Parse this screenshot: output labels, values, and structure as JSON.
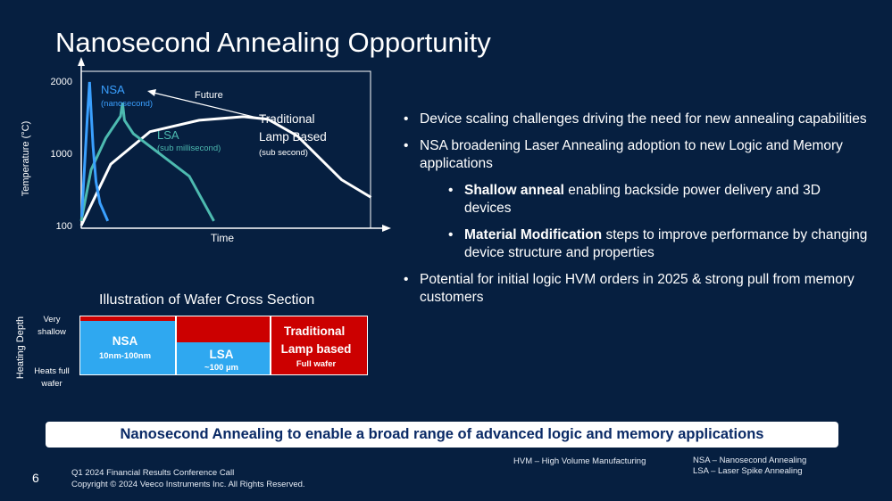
{
  "slide": {
    "title": "Nanosecond Annealing Opportunity",
    "page_number": "6",
    "footer_lines": [
      "Q1 2024 Financial Results Conference Call",
      "Copyright © 2024 Veeco Instruments Inc. All Rights Reserved."
    ],
    "hvm_note": "HVM – High Volume Manufacturing",
    "abbreviations": [
      "NSA – Nanosecond Annealing",
      "LSA – Laser Spike Annealing"
    ],
    "banner": "Nanosecond Annealing to enable a broad range of advanced logic and memory applications"
  },
  "bullets": [
    {
      "level": 1,
      "bold": "",
      "text": "Device scaling challenges driving the need for new annealing capabilities"
    },
    {
      "level": 1,
      "bold": "",
      "text": "NSA broadening Laser Annealing adoption to new Logic and Memory applications"
    },
    {
      "level": 2,
      "bold": "Shallow anneal",
      "text": " enabling backside power delivery and 3D devices"
    },
    {
      "level": 2,
      "bold": "Material Modification",
      "text": " steps to improve performance by changing device structure and properties"
    },
    {
      "level": 1,
      "bold": "",
      "text": "Potential for initial logic HVM orders in 2025 & strong pull from memory customers"
    }
  ],
  "bullet_char": "•",
  "chart_data": {
    "type": "line",
    "xlabel": "Time",
    "ylabel": "Temperature (°C)",
    "y_ticks": [
      "2000",
      "1000",
      "100"
    ],
    "series": [
      {
        "name": "NSA",
        "sublabel": "(nanosecond)",
        "color": "#3aa0ff",
        "points": [
          [
            0.5,
            120
          ],
          [
            6,
            900
          ],
          [
            8.5,
            2000
          ],
          [
            10,
            1100
          ],
          [
            12,
            520
          ],
          [
            15,
            250
          ],
          [
            19,
            160
          ],
          [
            27,
            110
          ]
        ]
      },
      {
        "name": "LSA",
        "sublabel": "(sub millisecond)",
        "color": "#4dbab0",
        "points": [
          [
            0,
            110
          ],
          [
            10,
            320
          ],
          [
            25,
            620
          ],
          [
            40,
            980
          ],
          [
            42,
            1300
          ],
          [
            44,
            900
          ],
          [
            53,
            680
          ],
          [
            110,
            280
          ],
          [
            135,
            110
          ]
        ]
      },
      {
        "name": "Traditional Lamp Based",
        "sublabel": "(sub second)",
        "color": "#ffffff",
        "points": [
          [
            0,
            100
          ],
          [
            30,
            360
          ],
          [
            70,
            710
          ],
          [
            120,
            900
          ],
          [
            165,
            970
          ],
          [
            190,
            920
          ],
          [
            220,
            650
          ],
          [
            265,
            260
          ],
          [
            295,
            180
          ]
        ]
      }
    ],
    "annotations": {
      "future": "Future"
    }
  },
  "wafer": {
    "title": "Illustration of Wafer Cross Section",
    "axis_label": "Heating Depth",
    "top_label": [
      "Very",
      "shallow"
    ],
    "bottom_label": [
      "Heats full",
      "wafer"
    ],
    "cells": [
      {
        "name": "NSA",
        "detail": "10nm-100nm",
        "color": "#2fa8f0"
      },
      {
        "name": "LSA",
        "detail": "~100 µm",
        "color": "#2fa8f0"
      },
      {
        "name": "Traditional Lamp based",
        "detail": "Full wafer",
        "color": "#cc0000"
      }
    ],
    "heated_color": "#cc0000"
  }
}
